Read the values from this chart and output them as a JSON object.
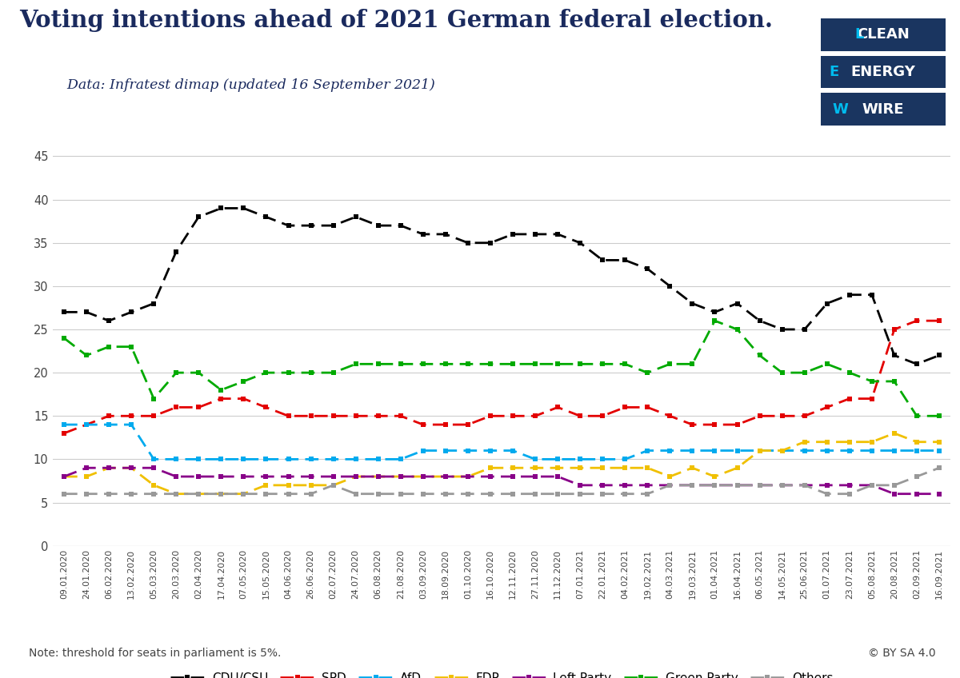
{
  "title": "Voting intentions ahead of 2021 German federal election.",
  "subtitle": "    Data: Infratest dimap (updated 16 September 2021)",
  "note": "Note: threshold for seats in parliament is 5%.",
  "dates": [
    "09.01.2020",
    "24.01.2020",
    "06.02.2020",
    "13.02.2020",
    "05.03.2020",
    "20.03.2020",
    "02.04.2020",
    "17.04.2020",
    "07.05.2020",
    "15.05.2020",
    "04.06.2020",
    "26.06.2020",
    "02.07.2020",
    "24.07.2020",
    "06.08.2020",
    "21.08.2020",
    "03.09.2020",
    "18.09.2020",
    "01.10.2020",
    "16.10.2020",
    "12.11.2020",
    "27.11.2020",
    "11.12.2020",
    "07.01.2021",
    "22.01.2021",
    "04.02.2021",
    "19.02.2021",
    "04.03.2021",
    "19.03.2021",
    "01.04.2021",
    "16.04.2021",
    "06.05.2021",
    "14.05.2021",
    "25.06.2021",
    "01.07.2021",
    "23.07.2021",
    "05.08.2021",
    "20.08.2021",
    "02.09.2021",
    "16.09.2021"
  ],
  "CDU_CSU": [
    27,
    27,
    26,
    27,
    28,
    34,
    38,
    39,
    39,
    38,
    37,
    37,
    37,
    38,
    37,
    37,
    36,
    36,
    35,
    35,
    36,
    36,
    36,
    35,
    33,
    33,
    32,
    30,
    28,
    27,
    28,
    26,
    25,
    25,
    28,
    29,
    29,
    22,
    21,
    22
  ],
  "SPD": [
    13,
    14,
    15,
    15,
    15,
    16,
    16,
    17,
    17,
    16,
    15,
    15,
    15,
    15,
    15,
    15,
    14,
    14,
    14,
    15,
    15,
    15,
    16,
    15,
    15,
    16,
    16,
    15,
    14,
    14,
    14,
    15,
    15,
    15,
    16,
    17,
    17,
    25,
    26,
    26
  ],
  "AfD": [
    14,
    14,
    14,
    14,
    10,
    10,
    10,
    10,
    10,
    10,
    10,
    10,
    10,
    10,
    10,
    10,
    11,
    11,
    11,
    11,
    11,
    10,
    10,
    10,
    10,
    10,
    11,
    11,
    11,
    11,
    11,
    11,
    11,
    11,
    11,
    11,
    11,
    11,
    11,
    11
  ],
  "FDP": [
    8,
    8,
    9,
    9,
    7,
    6,
    6,
    6,
    6,
    7,
    7,
    7,
    7,
    8,
    8,
    8,
    8,
    8,
    8,
    9,
    9,
    9,
    9,
    9,
    9,
    9,
    9,
    8,
    9,
    8,
    9,
    11,
    11,
    12,
    12,
    12,
    12,
    13,
    12,
    12
  ],
  "Left_Party": [
    8,
    9,
    9,
    9,
    9,
    8,
    8,
    8,
    8,
    8,
    8,
    8,
    8,
    8,
    8,
    8,
    8,
    8,
    8,
    8,
    8,
    8,
    8,
    7,
    7,
    7,
    7,
    7,
    7,
    7,
    7,
    7,
    7,
    7,
    7,
    7,
    7,
    6,
    6,
    6
  ],
  "Green_Party": [
    24,
    22,
    23,
    23,
    17,
    20,
    20,
    18,
    19,
    20,
    20,
    20,
    20,
    21,
    21,
    21,
    21,
    21,
    21,
    21,
    21,
    21,
    21,
    21,
    21,
    21,
    20,
    21,
    21,
    26,
    25,
    22,
    20,
    20,
    21,
    20,
    19,
    19,
    15,
    15
  ],
  "Others": [
    6,
    6,
    6,
    6,
    6,
    6,
    6,
    6,
    6,
    6,
    6,
    6,
    7,
    6,
    6,
    6,
    6,
    6,
    6,
    6,
    6,
    6,
    6,
    6,
    6,
    6,
    6,
    7,
    7,
    7,
    7,
    7,
    7,
    7,
    6,
    6,
    7,
    7,
    8,
    9
  ],
  "colors": {
    "CDU_CSU": "#000000",
    "SPD": "#e30000",
    "AfD": "#00aaee",
    "FDP": "#f0c000",
    "Left_Party": "#880088",
    "Green_Party": "#00aa00",
    "Others": "#999999"
  },
  "labels": {
    "CDU_CSU": "CDU/CSU",
    "SPD": "SPD",
    "AfD": "AfD",
    "FDP": "FDP",
    "Left_Party": "Left Party",
    "Green_Party": "Green Party",
    "Others": "Others"
  },
  "yticks": [
    0,
    5,
    10,
    15,
    20,
    25,
    30,
    35,
    40,
    45
  ],
  "ylim": [
    0,
    47
  ],
  "bg_color": "#ffffff",
  "title_color": "#1a2a5e",
  "subtitle_color": "#1a2a5e",
  "logo_bg": "#1a3560",
  "logo_energy_color": "#00bbee",
  "logo_text_color": "#ffffff"
}
